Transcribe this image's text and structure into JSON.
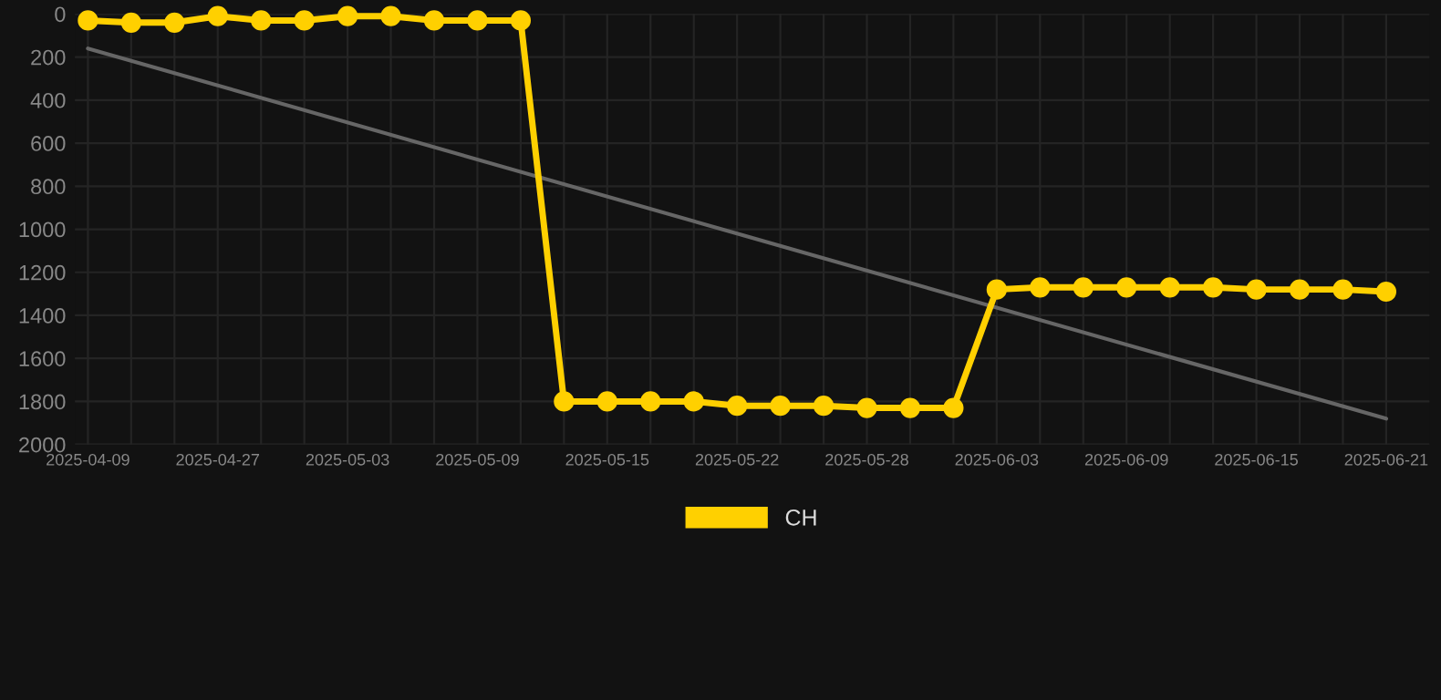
{
  "chart_data": {
    "type": "line",
    "categories": [
      "2025-04-09",
      null,
      null,
      "2025-04-27",
      null,
      null,
      "2025-05-03",
      null,
      null,
      "2025-05-09",
      null,
      null,
      "2025-05-15",
      null,
      null,
      "2025-05-22",
      null,
      null,
      "2025-05-28",
      null,
      null,
      "2025-06-03",
      null,
      null,
      "2025-06-09",
      null,
      null,
      "2025-06-15",
      null,
      null,
      "2025-06-21"
    ],
    "series": [
      {
        "name": "CH",
        "color": "#ffd000",
        "marker": "circle",
        "values": [
          30,
          40,
          40,
          10,
          30,
          30,
          10,
          10,
          30,
          30,
          30,
          1800,
          1800,
          1800,
          1800,
          1820,
          1820,
          1820,
          1830,
          1830,
          1830,
          1280,
          1270,
          1270,
          1270,
          1270,
          1270,
          1280,
          1280,
          1280,
          1290
        ]
      },
      {
        "color": "#666666",
        "marker": "none",
        "values": [
          160,
          null,
          null,
          null,
          null,
          null,
          null,
          null,
          null,
          null,
          null,
          null,
          null,
          null,
          null,
          null,
          null,
          null,
          null,
          null,
          null,
          null,
          null,
          null,
          null,
          null,
          null,
          null,
          null,
          null,
          1880
        ]
      }
    ],
    "ylim": [
      2000,
      0
    ],
    "yticks": [
      0,
      200,
      400,
      600,
      800,
      1000,
      1200,
      1400,
      1600,
      1800,
      2000
    ],
    "grid": true,
    "legend": "bottom"
  }
}
